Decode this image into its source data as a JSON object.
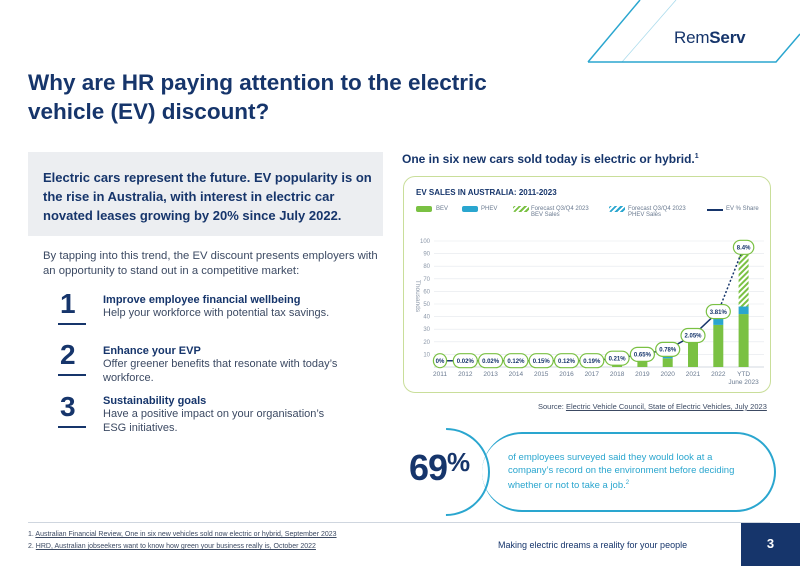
{
  "logo": {
    "brand_regular": "Rem",
    "brand_bold": "Serv"
  },
  "title": "Why are HR paying attention to the electric vehicle (EV) discount?",
  "intro": "Electric cars represent the future. EV popularity is on the rise in Australia, with interest in electric car novated leases growing by 20% since July 2022.",
  "body": "By tapping into this trend, the EV discount presents employers with an opportunity to stand out in a competitive market:",
  "points": [
    {
      "num": "1",
      "heading": "Improve employee financial wellbeing",
      "text": "Help your workforce with potential tax savings."
    },
    {
      "num": "2",
      "heading": "Enhance your EVP",
      "text": "Offer greener benefits that resonate with today’s workforce."
    },
    {
      "num": "3",
      "heading": "Sustainability goals",
      "text": "Have a positive impact on your organisation’s ESG initiatives."
    }
  ],
  "chart_heading": "One in six new cars sold today is electric or hybrid.",
  "chart_heading_sup": "1",
  "chart_data": {
    "type": "bar",
    "title": "EV SALES IN AUSTRALIA: 2011-2023",
    "ylabel": "Thousands",
    "ylim": [
      0,
      100
    ],
    "yticks": [
      10,
      20,
      30,
      40,
      50,
      60,
      70,
      80,
      90,
      100
    ],
    "categories": [
      "2011",
      "2012",
      "2013",
      "2014",
      "2015",
      "2016",
      "2017",
      "2018",
      "2019",
      "2020",
      "2021",
      "2022",
      "YTD"
    ],
    "category_sublabel": "June 2023",
    "stacked": true,
    "series": [
      {
        "name": "BEV",
        "color": "#7ac143",
        "values": [
          0,
          0.2,
          0.2,
          0.3,
          0.8,
          0.7,
          1.2,
          1.4,
          6.7,
          6.9,
          19.5,
          33.4,
          42
        ]
      },
      {
        "name": "PHEV",
        "color": "#2aa6cf",
        "values": [
          0,
          0,
          0.2,
          0.8,
          0.9,
          0.8,
          1.0,
          1.3,
          1.4,
          1.5,
          2.5,
          5.5,
          6
        ]
      },
      {
        "name": "Forecast Q3/Q4 2023 BEV Sales",
        "color": "#7ac143",
        "pattern": "hatch",
        "values": [
          0,
          0,
          0,
          0,
          0,
          0,
          0,
          0,
          0,
          0,
          0,
          0,
          42
        ]
      },
      {
        "name": "Forecast Q3/Q4 2023 PHEV Sales",
        "color": "#2aa6cf",
        "pattern": "hatch",
        "values": [
          0,
          0,
          0,
          0,
          0,
          0,
          0,
          0,
          0,
          0,
          0,
          0,
          4
        ]
      }
    ],
    "ev_share": {
      "name": "EV % Share",
      "labels": [
        "0%",
        "0.02%",
        "0.02%",
        "0.12%",
        "0.15%",
        "0.12%",
        "0.19%",
        "0.21%",
        "0.65%",
        "0.78%",
        "2.05%",
        "3.81%",
        "8.4%"
      ],
      "y": [
        5,
        5,
        5,
        5,
        5,
        5,
        5,
        7,
        10,
        14,
        25,
        44,
        95
      ]
    },
    "legend_position": "top"
  },
  "source_label": "Source: ",
  "source_link": "Electric Vehicle Council, State of Electric Vehicles, July 2023",
  "stat_number": "69",
  "stat_pct": "%",
  "stat_text": "of employees surveyed said they would look at a company’s record on the environment before deciding whether or not to take a job.",
  "stat_sup": "2",
  "footnotes": [
    {
      "num": "1. ",
      "text": "Australian Financial Review, One in six new vehicles sold now electric or hybrid, September 2023"
    },
    {
      "num": "2. ",
      "text": "HRD, Australian jobseekers want to know how green your business really is, October 2022"
    }
  ],
  "tagline": "Making electric dreams a reality for your people",
  "page_number": "3",
  "colors": {
    "navy": "#16356b",
    "teal": "#2aa6cf",
    "green": "#7ac143"
  }
}
